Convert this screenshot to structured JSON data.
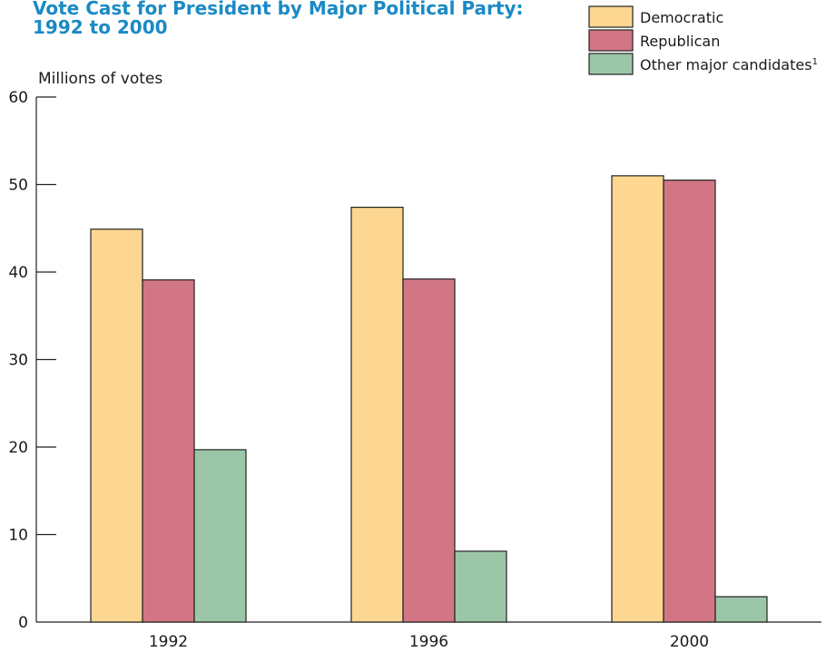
{
  "chart_data": {
    "type": "bar",
    "title_line1": "Vote Cast for President by Major Political Party:",
    "title_line2": "1992 to 2000",
    "ylabel": "Millions of votes",
    "xlabel": "",
    "ylim": [
      0,
      60
    ],
    "y_ticks": [
      "0",
      "10",
      "20",
      "30",
      "40",
      "50",
      "60"
    ],
    "categories": [
      "1992",
      "1996",
      "2000"
    ],
    "series": [
      {
        "name": "Democratic",
        "values": [
          44.9,
          47.4,
          51.0
        ],
        "color": "#fdd791"
      },
      {
        "name": "Republican",
        "values": [
          39.1,
          39.2,
          50.5
        ],
        "color": "#d27585"
      },
      {
        "name": "Other major candidates",
        "values": [
          19.7,
          8.1,
          2.9
        ],
        "color": "#9cc6a8"
      }
    ],
    "legend_footnote_marker": "1",
    "grid": false,
    "legend_position": "top-right"
  }
}
